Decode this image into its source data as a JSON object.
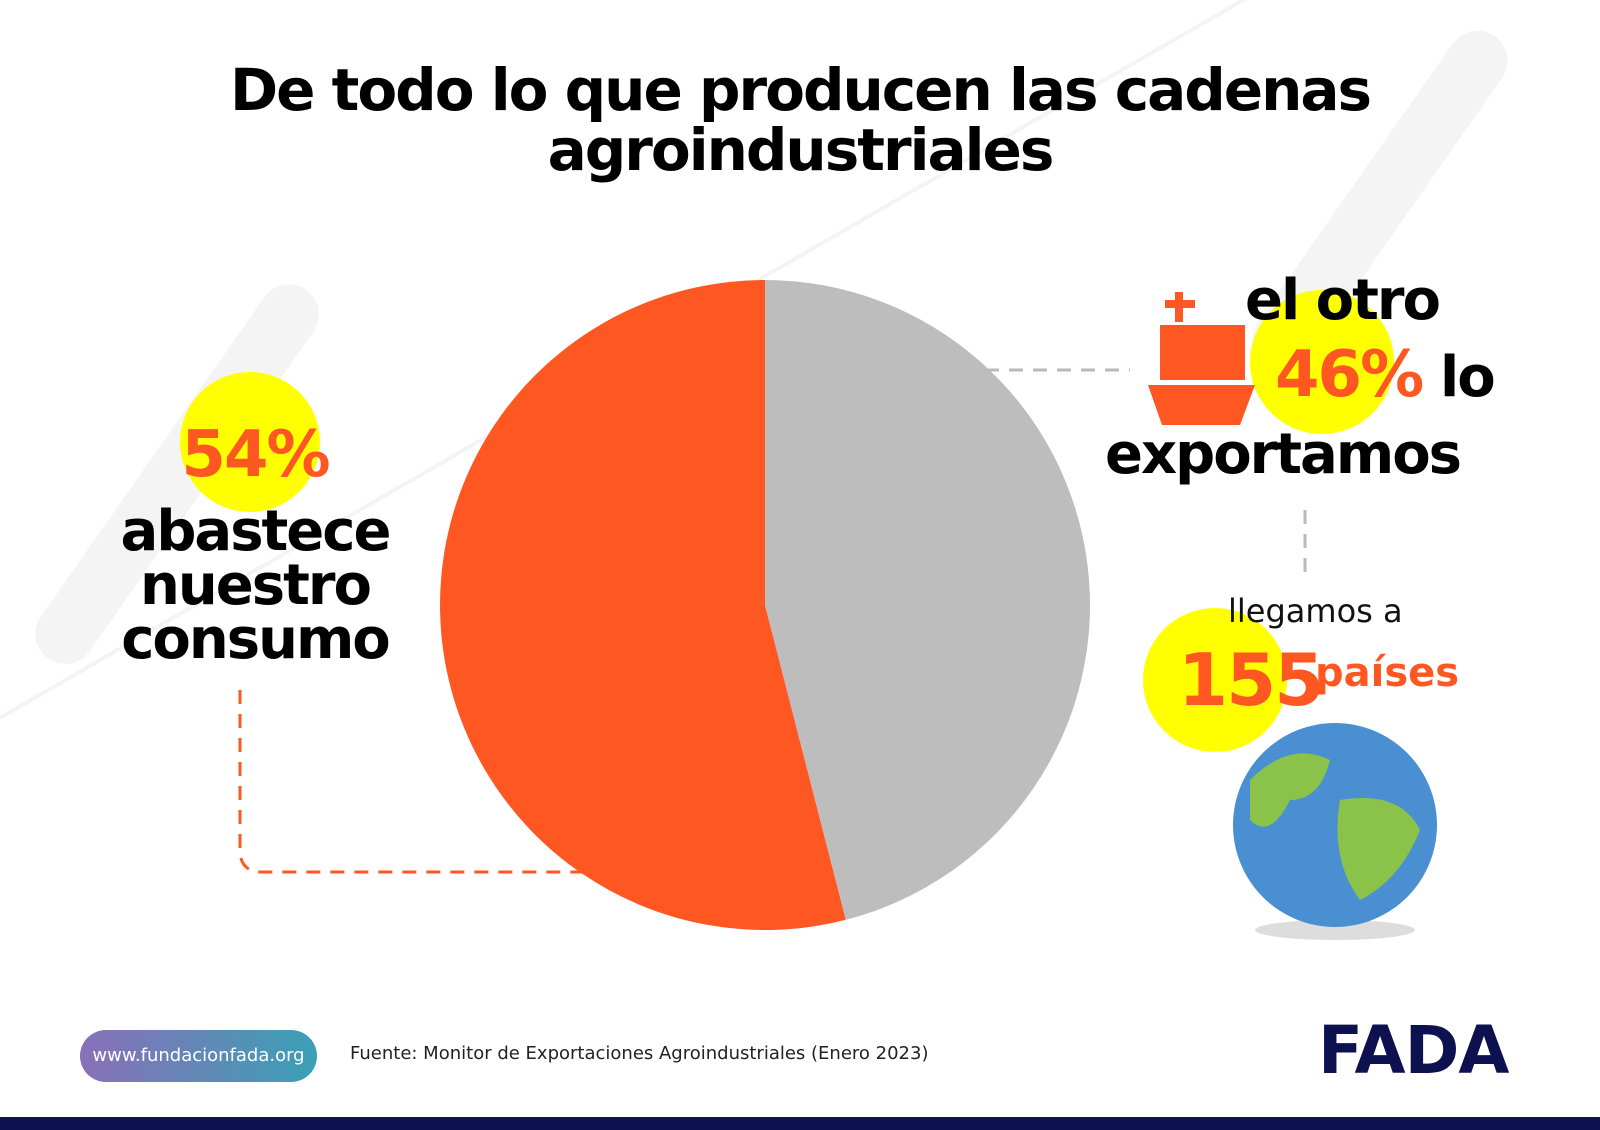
{
  "chart_data": {
    "type": "pie",
    "title": "De todo lo que producen las cadenas agroindustriales",
    "values": [
      54,
      46
    ],
    "value_labels": [
      "54%",
      "46%"
    ],
    "colors": [
      "#ff5722",
      "#bdbdbd"
    ],
    "annotations": {
      "consumption": "abastece nuestro consumo",
      "export_before": "el otro",
      "export_after": "lo",
      "export_line": "exportamos",
      "countries_before": "llegamos a",
      "countries": 155,
      "countries_after": "países"
    }
  },
  "footer": {
    "url": "www.fundacionfada.org",
    "source": "Fuente: Monitor de Exportaciones Agroindustriales (Enero 2023)",
    "logo": "FADA"
  }
}
